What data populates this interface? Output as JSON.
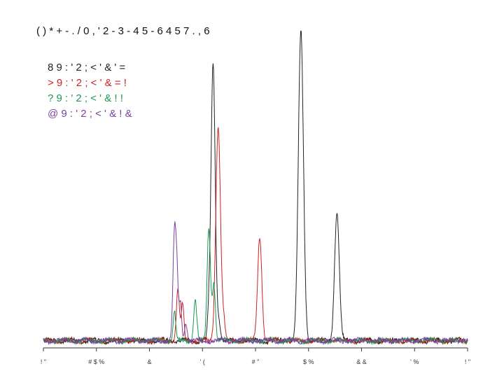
{
  "chart_data": {
    "type": "line",
    "title": "( ) * + - . / 0 , ' 2 - 3 - 4 5 - 6 4 5 7 . , 6",
    "xlabel": "",
    "ylabel": "",
    "xlim": [
      0,
      100
    ],
    "ylim": [
      0,
      100
    ],
    "grid": false,
    "legend_placement": "top-left",
    "x_tick_labels": [
      "! \"",
      "# $ %",
      "&",
      "' (",
      "# \"",
      "$ %",
      "& &",
      "' %",
      "! \""
    ],
    "series": [
      {
        "name": "8 9 : ' 2 ; < ' & ' =",
        "color": "#222222",
        "peaks": [
          {
            "x": 40.0,
            "y": 88,
            "w": 0.5
          },
          {
            "x": 60.7,
            "y": 98,
            "w": 0.6
          },
          {
            "x": 69.2,
            "y": 41,
            "w": 0.55
          },
          {
            "x": 41.4,
            "y": 6,
            "w": 0.35
          },
          {
            "x": 38.9,
            "y": 5,
            "w": 0.3
          }
        ]
      },
      {
        "name": "> 9 : ' 2 ; < ' & = !",
        "color": "#cc2222",
        "peaks": [
          {
            "x": 41.2,
            "y": 68,
            "w": 0.55
          },
          {
            "x": 51.0,
            "y": 33,
            "w": 0.5
          },
          {
            "x": 31.7,
            "y": 16,
            "w": 0.35
          },
          {
            "x": 32.8,
            "y": 12,
            "w": 0.3
          },
          {
            "x": 42.5,
            "y": 5,
            "w": 0.35
          }
        ]
      },
      {
        "name": "? 9 : ' 2 ; < ' & ! !",
        "color": "#1a9850",
        "peaks": [
          {
            "x": 39.0,
            "y": 36,
            "w": 0.4
          },
          {
            "x": 35.8,
            "y": 13,
            "w": 0.35
          },
          {
            "x": 30.9,
            "y": 9,
            "w": 0.3
          },
          {
            "x": 40.2,
            "y": 18,
            "w": 0.35
          }
        ]
      },
      {
        "name": "@ 9 : ' 2 ; < ' & ! &",
        "color": "#7b3f9e",
        "peaks": [
          {
            "x": 30.9,
            "y": 34,
            "w": 0.35
          },
          {
            "x": 32.3,
            "y": 12,
            "w": 0.3
          },
          {
            "x": 31.5,
            "y": 18,
            "w": 0.3
          },
          {
            "x": 33.6,
            "y": 6,
            "w": 0.3
          }
        ]
      }
    ]
  }
}
